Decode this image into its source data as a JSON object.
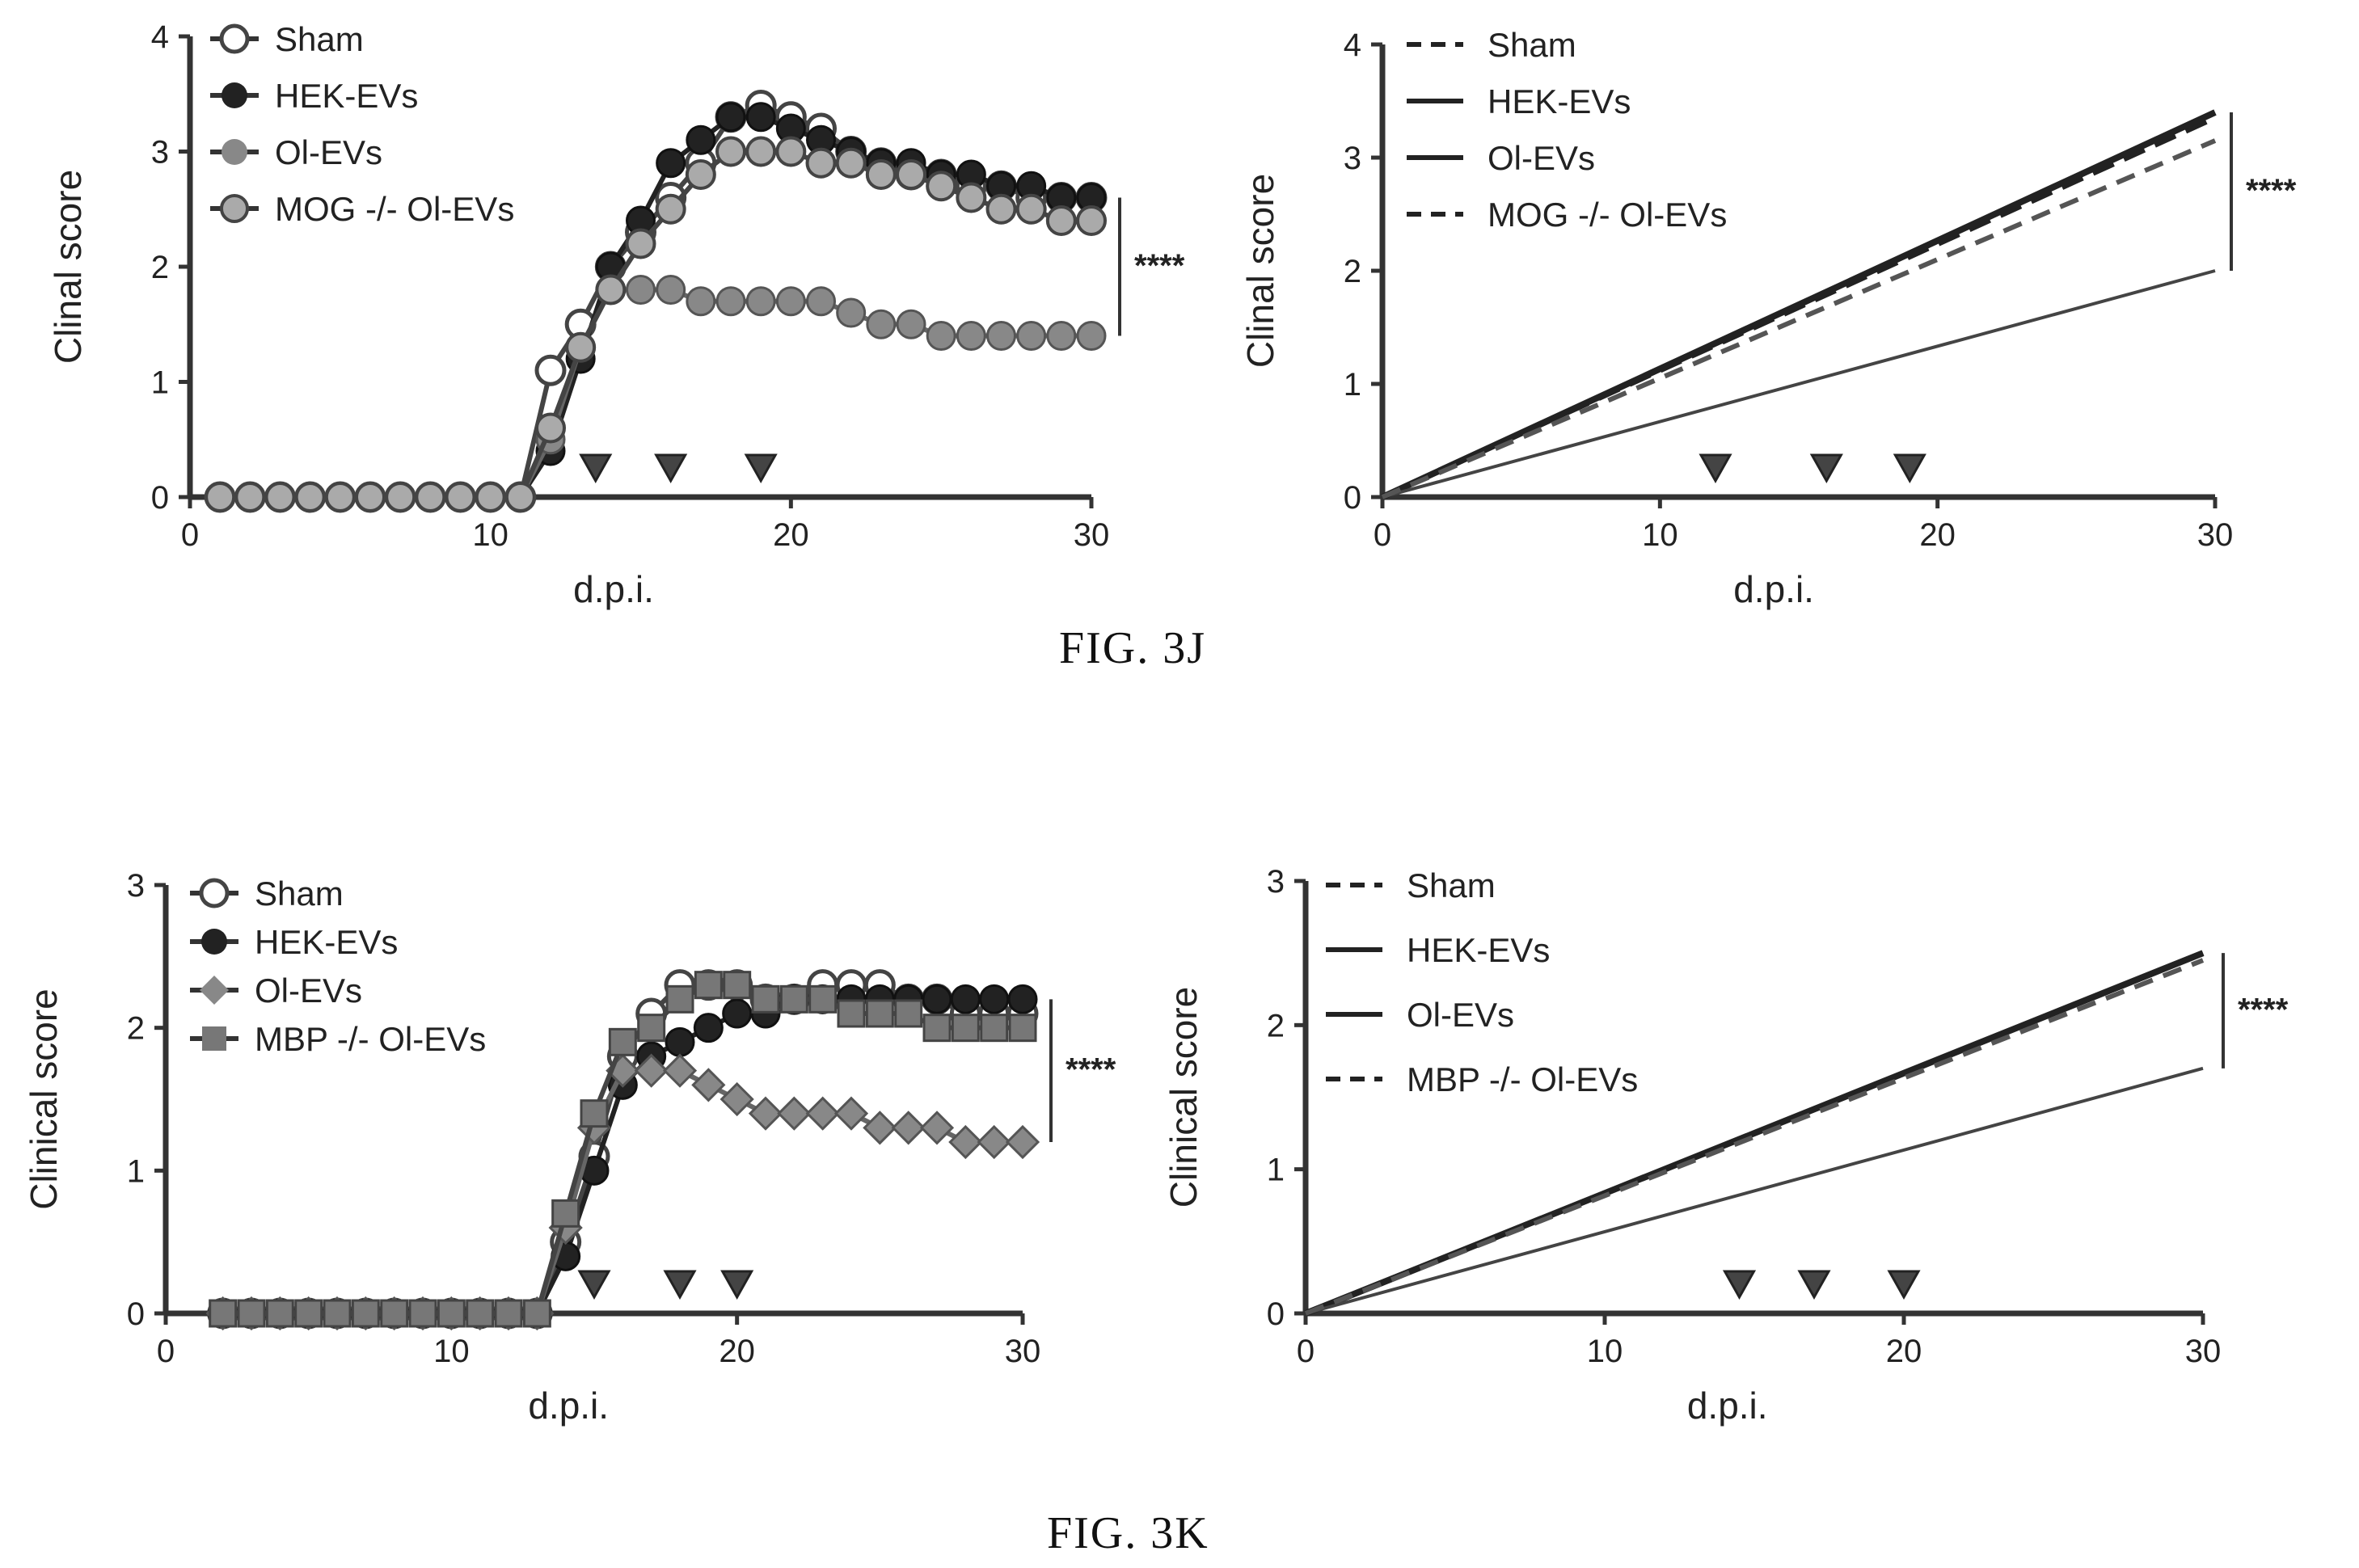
{
  "figures": [
    {
      "caption": "FIG. 3J"
    },
    {
      "caption": "FIG. 3K"
    }
  ],
  "chart_data": [
    {
      "type": "line",
      "xlabel": "d.p.i.",
      "ylabel": "Clinal score",
      "xlim": [
        0,
        30
      ],
      "ylim": [
        0,
        4
      ],
      "xticks": [
        0,
        10,
        20,
        30
      ],
      "yticks": [
        0,
        1,
        2,
        3,
        4
      ],
      "legend": "top-left",
      "significance": "****",
      "arrows_x": [
        13.5,
        16,
        19
      ],
      "x": [
        1,
        2,
        3,
        4,
        5,
        6,
        7,
        8,
        9,
        10,
        11,
        12,
        13,
        14,
        15,
        16,
        17,
        18,
        19,
        20,
        21,
        22,
        23,
        24,
        25,
        26,
        27,
        28,
        29,
        30
      ],
      "series": [
        {
          "name": "Sham",
          "marker": "open-circle",
          "values": [
            0,
            0,
            0,
            0,
            0,
            0,
            0,
            0,
            0,
            0,
            0,
            1.1,
            1.5,
            2.0,
            2.3,
            2.6,
            2.9,
            3.3,
            3.4,
            3.3,
            3.2,
            3.0,
            2.9,
            2.8,
            2.8,
            2.7,
            2.7,
            2.6,
            2.6,
            2.6
          ]
        },
        {
          "name": "HEK-EVs",
          "marker": "filled-circle",
          "values": [
            0,
            0,
            0,
            0,
            0,
            0,
            0,
            0,
            0,
            0,
            0,
            0.4,
            1.2,
            2.0,
            2.4,
            2.9,
            3.1,
            3.3,
            3.3,
            3.2,
            3.1,
            3.0,
            2.9,
            2.9,
            2.8,
            2.8,
            2.7,
            2.7,
            2.6,
            2.6
          ]
        },
        {
          "name": "Ol-EVs",
          "marker": "grey-circle",
          "values": [
            0,
            0,
            0,
            0,
            0,
            0,
            0,
            0,
            0,
            0,
            0,
            0.5,
            1.3,
            1.8,
            1.8,
            1.8,
            1.7,
            1.7,
            1.7,
            1.7,
            1.7,
            1.6,
            1.5,
            1.5,
            1.4,
            1.4,
            1.4,
            1.4,
            1.4,
            1.4
          ]
        },
        {
          "name": "MOG -/- Ol-EVs",
          "marker": "striped-circle",
          "values": [
            0,
            0,
            0,
            0,
            0,
            0,
            0,
            0,
            0,
            0,
            0,
            0.6,
            1.3,
            1.8,
            2.2,
            2.5,
            2.8,
            3.0,
            3.0,
            3.0,
            2.9,
            2.9,
            2.8,
            2.8,
            2.7,
            2.6,
            2.5,
            2.5,
            2.4,
            2.4
          ]
        }
      ]
    },
    {
      "type": "line",
      "xlabel": "d.p.i.",
      "ylabel": "Clinal score",
      "xlim": [
        0,
        30
      ],
      "ylim": [
        0,
        4
      ],
      "xticks": [
        0,
        10,
        20,
        30
      ],
      "yticks": [
        0,
        1,
        2,
        3,
        4
      ],
      "legend": "top-left",
      "significance": "****",
      "arrows_x": [
        12,
        16,
        19
      ],
      "series": [
        {
          "name": "Sham",
          "style": "dashed",
          "x": [
            0,
            30
          ],
          "values": [
            0,
            3.35
          ]
        },
        {
          "name": "HEK-EVs",
          "style": "solid-thick",
          "x": [
            0,
            30
          ],
          "values": [
            0,
            3.4
          ]
        },
        {
          "name": "Ol-EVs",
          "style": "solid-thin",
          "x": [
            0,
            30
          ],
          "values": [
            0,
            2.0
          ]
        },
        {
          "name": "MOG -/- Ol-EVs",
          "style": "dashed-grey",
          "x": [
            0,
            30
          ],
          "values": [
            0,
            3.15
          ]
        }
      ]
    },
    {
      "type": "line",
      "xlabel": "d.p.i.",
      "ylabel": "Clinical score",
      "xlim": [
        0,
        30
      ],
      "ylim": [
        0,
        3
      ],
      "xticks": [
        0,
        10,
        20,
        30
      ],
      "yticks": [
        0,
        1,
        2,
        3
      ],
      "legend": "top-left",
      "significance": "****",
      "arrows_x": [
        15,
        18,
        20
      ],
      "x": [
        2,
        3,
        4,
        5,
        6,
        7,
        8,
        9,
        10,
        11,
        12,
        13,
        14,
        15,
        16,
        17,
        18,
        19,
        20,
        21,
        22,
        23,
        24,
        25,
        26,
        27,
        28,
        29,
        30
      ],
      "series": [
        {
          "name": "Sham",
          "marker": "open-circle",
          "values": [
            0,
            0,
            0,
            0,
            0,
            0,
            0,
            0,
            0,
            0,
            0,
            0,
            0.5,
            1.1,
            1.8,
            2.1,
            2.3,
            2.3,
            2.3,
            2.2,
            2.2,
            2.3,
            2.3,
            2.3,
            2.2,
            2.2,
            2.1,
            2.1,
            2.1
          ]
        },
        {
          "name": "HEK-EVs",
          "marker": "filled-circle",
          "values": [
            0,
            0,
            0,
            0,
            0,
            0,
            0,
            0,
            0,
            0,
            0,
            0,
            0.4,
            1.0,
            1.6,
            1.8,
            1.9,
            2.0,
            2.1,
            2.1,
            2.2,
            2.2,
            2.2,
            2.2,
            2.2,
            2.2,
            2.2,
            2.2,
            2.2
          ]
        },
        {
          "name": "Ol-EVs",
          "marker": "grey-diamond",
          "values": [
            0,
            0,
            0,
            0,
            0,
            0,
            0,
            0,
            0,
            0,
            0,
            0,
            0.6,
            1.3,
            1.7,
            1.7,
            1.7,
            1.6,
            1.5,
            1.4,
            1.4,
            1.4,
            1.4,
            1.3,
            1.3,
            1.3,
            1.2,
            1.2,
            1.2
          ]
        },
        {
          "name": "MBP -/- Ol-EVs",
          "marker": "striped-square",
          "values": [
            0,
            0,
            0,
            0,
            0,
            0,
            0,
            0,
            0,
            0,
            0,
            0,
            0.7,
            1.4,
            1.9,
            2.0,
            2.2,
            2.3,
            2.3,
            2.2,
            2.2,
            2.2,
            2.1,
            2.1,
            2.1,
            2.0,
            2.0,
            2.0,
            2.0
          ]
        }
      ]
    },
    {
      "type": "line",
      "xlabel": "d.p.i.",
      "ylabel": "Clinical score",
      "xlim": [
        0,
        30
      ],
      "ylim": [
        0,
        3
      ],
      "xticks": [
        0,
        10,
        20,
        30
      ],
      "yticks": [
        0,
        1,
        2,
        3
      ],
      "legend": "top-left",
      "significance": "****",
      "arrows_x": [
        14.5,
        17,
        20
      ],
      "series": [
        {
          "name": "Sham",
          "style": "dashed",
          "x": [
            0,
            30
          ],
          "values": [
            0,
            2.5
          ]
        },
        {
          "name": "HEK-EVs",
          "style": "solid-thick",
          "x": [
            0,
            30
          ],
          "values": [
            0,
            2.5
          ]
        },
        {
          "name": "Ol-EVs",
          "style": "solid-thin",
          "x": [
            0,
            30
          ],
          "values": [
            0,
            1.7
          ]
        },
        {
          "name": "MBP -/- Ol-EVs",
          "style": "dashed-grey",
          "x": [
            0,
            30
          ],
          "values": [
            0,
            2.45
          ]
        }
      ]
    }
  ]
}
